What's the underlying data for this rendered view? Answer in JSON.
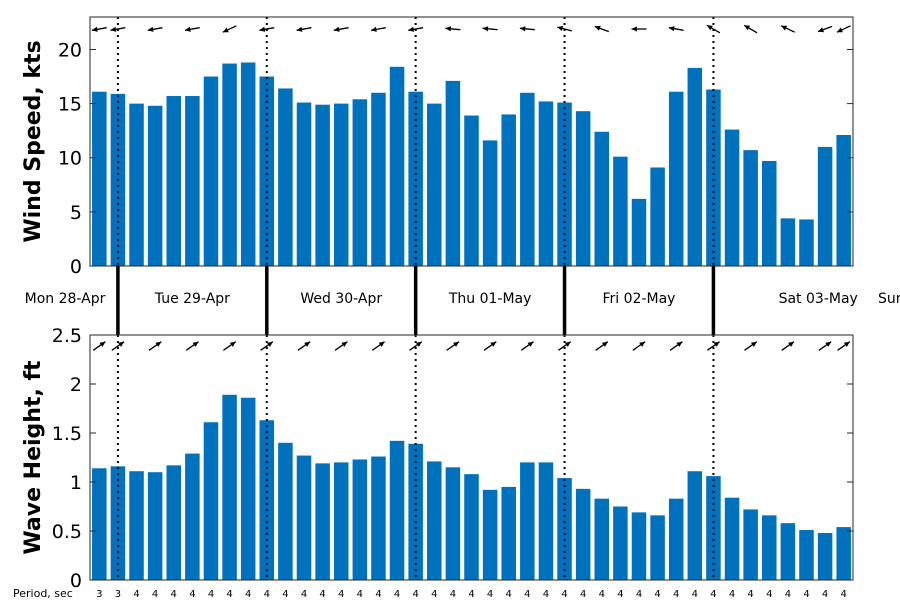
{
  "colors": {
    "bar": "#0072BD",
    "axis": "#262626",
    "arrow": "#000000",
    "background": "#ffffff"
  },
  "days": [
    "Mon 28-Apr",
    "Tue 29-Apr",
    "Wed 30-Apr",
    "Thu 01-May",
    "Fri 02-May",
    "Sat 03-May",
    "Sun"
  ],
  "period_label": "Period, sec",
  "chart_data": [
    {
      "type": "bar",
      "ylabel": "Wind Speed, kts",
      "xlabel": "",
      "ylim": [
        0,
        23
      ],
      "yticks": [
        0,
        5,
        10,
        15,
        20
      ],
      "grid": false,
      "values": [
        16.1,
        15.9,
        15.0,
        14.8,
        15.7,
        15.7,
        17.5,
        18.7,
        18.8,
        17.5,
        16.4,
        15.1,
        14.9,
        15.0,
        15.4,
        16.0,
        18.4,
        16.1,
        15.0,
        17.1,
        13.9,
        11.6,
        14.0,
        16.0,
        15.2,
        15.1,
        14.3,
        12.4,
        10.1,
        6.2,
        9.1,
        16.1,
        18.3,
        16.3,
        12.6,
        10.7,
        9.7,
        4.4,
        4.3,
        11.0,
        12.1
      ],
      "direction_arrows_deg": [
        190,
        190,
        190,
        190,
        190,
        190,
        200,
        205,
        205,
        190,
        190,
        190,
        190,
        190,
        190,
        190,
        190,
        190,
        180,
        175,
        175,
        175,
        175,
        175,
        170,
        165,
        170,
        160,
        165,
        180,
        175,
        170,
        165,
        150,
        150,
        150,
        145,
        155,
        150,
        200,
        205
      ]
    },
    {
      "type": "bar",
      "ylabel": "Wave Height, ft",
      "xlabel": "",
      "ylim": [
        0,
        2.5
      ],
      "yticks": [
        0,
        0.5,
        1,
        1.5,
        2,
        2.5
      ],
      "grid": false,
      "values": [
        1.14,
        1.16,
        1.11,
        1.1,
        1.17,
        1.29,
        1.61,
        1.89,
        1.86,
        1.63,
        1.4,
        1.27,
        1.19,
        1.2,
        1.23,
        1.26,
        1.42,
        1.39,
        1.21,
        1.15,
        1.08,
        0.92,
        0.95,
        1.2,
        1.2,
        1.04,
        0.93,
        0.83,
        0.75,
        0.69,
        0.66,
        0.83,
        1.11,
        1.06,
        0.84,
        0.72,
        0.66,
        0.58,
        0.51,
        0.48,
        0.54
      ],
      "direction_arrows_deg": [
        35,
        35,
        35,
        35,
        35,
        35,
        35,
        35,
        35,
        35,
        35,
        35,
        35,
        35,
        35,
        35,
        35,
        35,
        35,
        35,
        35,
        35,
        35,
        35,
        35,
        35,
        35,
        35,
        35,
        35,
        35,
        35,
        35,
        35,
        35,
        35,
        35,
        35,
        35,
        35,
        35
      ],
      "periods_sec": [
        "3",
        "3",
        "4",
        "4",
        "4",
        "4",
        "4",
        "4",
        "4",
        "4",
        "4",
        "4",
        "4",
        "4",
        "4",
        "4",
        "4",
        "4",
        "4",
        "4",
        "4",
        "4",
        "4",
        "4",
        "4",
        "4",
        "4",
        "4",
        "4",
        "4",
        "4",
        "4",
        "4",
        "4",
        "4",
        "4",
        "4",
        "4",
        "4",
        "4",
        "4"
      ]
    }
  ]
}
